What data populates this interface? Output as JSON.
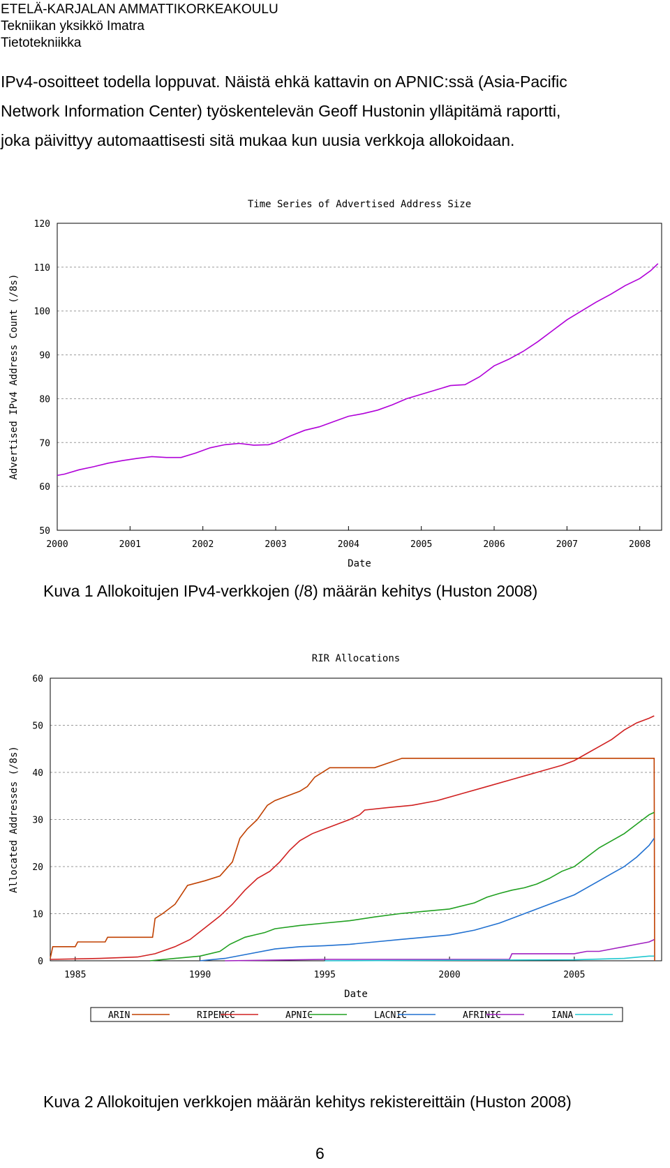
{
  "header": {
    "line1": "ETELÄ-KARJALAN AMMATTIKORKEAKOULU",
    "line2": "Tekniikan yksikkö Imatra",
    "line3": "Tietotekniikka"
  },
  "paragraph": {
    "lines": [
      "IPv4-osoitteet todella loppuvat. Näistä ehkä kattavin on APNIC:ssä (Asia-Pacific",
      "Network Information Center) työskentelevän Geoff Hustonin ylläpitämä raportti,",
      "joka päivittyy automaattisesti sitä mukaa kun uusia verkkoja allokoidaan."
    ]
  },
  "figure1": {
    "caption": "Kuva 1 Allokoitujen IPv4-verkkojen (/8) määrän kehitys (Huston 2008)"
  },
  "figure2": {
    "caption": "Kuva 2 Allokoitujen verkkojen määrän kehitys rekistereittäin (Huston 2008)"
  },
  "page_number": "6",
  "chart_data": [
    {
      "type": "line",
      "title": "Time Series of Advertised Address Size",
      "xlabel": "Date",
      "ylabel": "Advertised IPv4 Address Count (/8s)",
      "xlim": [
        2000,
        2008.3
      ],
      "ylim": [
        50,
        120
      ],
      "x_ticks": [
        "2000",
        "2001",
        "2002",
        "2003",
        "2004",
        "2005",
        "2006",
        "2007",
        "2008"
      ],
      "y_ticks": [
        50,
        60,
        70,
        80,
        90,
        100,
        110,
        120
      ],
      "grid": true,
      "series": [
        {
          "color": "#b000d8",
          "x": [
            2000.0,
            2000.1,
            2000.3,
            2000.5,
            2000.7,
            2000.9,
            2001.1,
            2001.3,
            2001.5,
            2001.7,
            2001.9,
            2002.1,
            2002.3,
            2002.5,
            2002.7,
            2002.9,
            2003.0,
            2003.2,
            2003.4,
            2003.6,
            2003.8,
            2004.0,
            2004.2,
            2004.4,
            2004.6,
            2004.8,
            2005.0,
            2005.2,
            2005.4,
            2005.6,
            2005.8,
            2006.0,
            2006.2,
            2006.4,
            2006.6,
            2006.8,
            2007.0,
            2007.2,
            2007.4,
            2007.6,
            2007.8,
            2008.0,
            2008.15,
            2008.25
          ],
          "values": [
            62.5,
            62.8,
            63.8,
            64.5,
            65.3,
            65.9,
            66.4,
            66.8,
            66.6,
            66.6,
            67.6,
            68.8,
            69.5,
            69.8,
            69.4,
            69.5,
            70.0,
            71.5,
            72.8,
            73.6,
            74.8,
            76.0,
            76.6,
            77.4,
            78.6,
            80.0,
            81.0,
            82.0,
            83.0,
            83.2,
            85.0,
            87.5,
            89.0,
            90.8,
            93.0,
            95.5,
            98.0,
            100.0,
            102.0,
            103.8,
            105.8,
            107.4,
            109.2,
            110.8
          ]
        }
      ]
    },
    {
      "type": "line",
      "title": "RIR Allocations",
      "xlabel": "Date",
      "ylabel": "Allocated Addresses (/8s)",
      "xlim": [
        1984,
        2008.5
      ],
      "ylim": [
        0,
        60
      ],
      "x_ticks": [
        "1985",
        "1990",
        "1995",
        "2000",
        "2005"
      ],
      "y_ticks": [
        0,
        10,
        20,
        30,
        40,
        50,
        60
      ],
      "grid": true,
      "legend": "bottom",
      "series": [
        {
          "name": "ARIN",
          "color": "#c04000",
          "x": [
            1984.0,
            1984.1,
            1985.0,
            1985.1,
            1986.2,
            1986.3,
            1988.1,
            1988.2,
            1988.5,
            1989.0,
            1989.5,
            1990.2,
            1990.8,
            1991.3,
            1991.6,
            1991.9,
            1992.3,
            1992.7,
            1993.0,
            1993.5,
            1994.0,
            1994.3,
            1994.6,
            1995.2,
            1997.0,
            1998.1,
            2000.0,
            2004.0,
            2008.2,
            2008.22
          ],
          "values": [
            0.5,
            3.0,
            3.0,
            4.0,
            4.0,
            5.0,
            5.0,
            9.0,
            10.0,
            12.0,
            16.0,
            17.0,
            18.0,
            21.0,
            26.0,
            28.0,
            30.0,
            33.0,
            34.0,
            35.0,
            36.0,
            37.0,
            39.0,
            41.0,
            41.0,
            43.0,
            43.0,
            43.0,
            43.0,
            0.0
          ]
        },
        {
          "name": "RIPENCC",
          "color": "#d02020",
          "x": [
            1984.0,
            1986.0,
            1987.5,
            1988.2,
            1989.0,
            1989.6,
            1990.2,
            1990.8,
            1991.3,
            1991.8,
            1992.3,
            1992.8,
            1993.2,
            1993.6,
            1994.0,
            1994.5,
            1995.0,
            1995.5,
            1996.0,
            1996.4,
            1996.6,
            1997.5,
            1998.5,
            1999.5,
            2000.5,
            2001.5,
            2002.5,
            2003.5,
            2004.5,
            2005.0,
            2005.5,
            2006.0,
            2006.5,
            2007.0,
            2007.5,
            2008.0,
            2008.2
          ],
          "values": [
            0.3,
            0.5,
            0.8,
            1.5,
            3.0,
            4.5,
            7.0,
            9.5,
            12.0,
            15.0,
            17.5,
            19.0,
            21.0,
            23.5,
            25.5,
            27.0,
            28.0,
            29.0,
            30.0,
            31.0,
            32.0,
            32.5,
            33.0,
            34.0,
            35.5,
            37.0,
            38.5,
            40.0,
            41.5,
            42.5,
            44.0,
            45.5,
            47.0,
            49.0,
            50.5,
            51.5,
            52.0
          ]
        },
        {
          "name": "APNIC",
          "color": "#20a020",
          "x": [
            1988.0,
            1989.0,
            1990.0,
            1990.8,
            1991.2,
            1991.8,
            1992.2,
            1992.6,
            1993.0,
            1994.0,
            1995.0,
            1996.0,
            1997.0,
            1998.0,
            1999.0,
            2000.0,
            2001.0,
            2001.5,
            2002.0,
            2002.5,
            2003.0,
            2003.5,
            2004.0,
            2004.5,
            2005.0,
            2005.5,
            2006.0,
            2006.5,
            2007.0,
            2007.5,
            2008.0,
            2008.2
          ],
          "values": [
            0.0,
            0.5,
            1.0,
            2.0,
            3.5,
            5.0,
            5.5,
            6.0,
            6.8,
            7.5,
            8.0,
            8.5,
            9.3,
            10.0,
            10.5,
            11.0,
            12.3,
            13.5,
            14.3,
            15.0,
            15.5,
            16.3,
            17.5,
            19.0,
            20.0,
            22.0,
            24.0,
            25.5,
            27.0,
            29.0,
            31.0,
            31.5
          ]
        },
        {
          "name": "LACNIC",
          "color": "#2070d0",
          "x": [
            1990.0,
            1991.0,
            1992.0,
            1993.0,
            1994.0,
            1995.0,
            1996.0,
            1997.0,
            1998.0,
            1999.0,
            2000.0,
            2001.0,
            2002.0,
            2002.5,
            2003.0,
            2003.5,
            2004.0,
            2004.5,
            2005.0,
            2005.5,
            2006.0,
            2006.5,
            2007.0,
            2007.5,
            2008.0,
            2008.2
          ],
          "values": [
            0.0,
            0.5,
            1.5,
            2.5,
            3.0,
            3.2,
            3.5,
            4.0,
            4.5,
            5.0,
            5.5,
            6.5,
            8.0,
            9.0,
            10.0,
            11.0,
            12.0,
            13.0,
            14.0,
            15.5,
            17.0,
            18.5,
            20.0,
            22.0,
            24.5,
            26.0
          ]
        },
        {
          "name": "AFRINIC",
          "color": "#a020c0",
          "x": [
            1991.0,
            1995.0,
            2002.4,
            2002.5,
            2004.0,
            2005.0,
            2005.5,
            2006.0,
            2006.5,
            2007.0,
            2007.5,
            2008.0,
            2008.2
          ],
          "values": [
            0.0,
            0.3,
            0.3,
            1.5,
            1.5,
            1.5,
            2.0,
            2.0,
            2.5,
            3.0,
            3.5,
            4.0,
            4.5
          ]
        },
        {
          "name": "IANA",
          "color": "#20c8d0",
          "x": [
            1995.0,
            2005.0,
            2007.0,
            2008.0,
            2008.2
          ],
          "values": [
            0.0,
            0.2,
            0.5,
            1.0,
            1.0
          ]
        }
      ]
    }
  ]
}
